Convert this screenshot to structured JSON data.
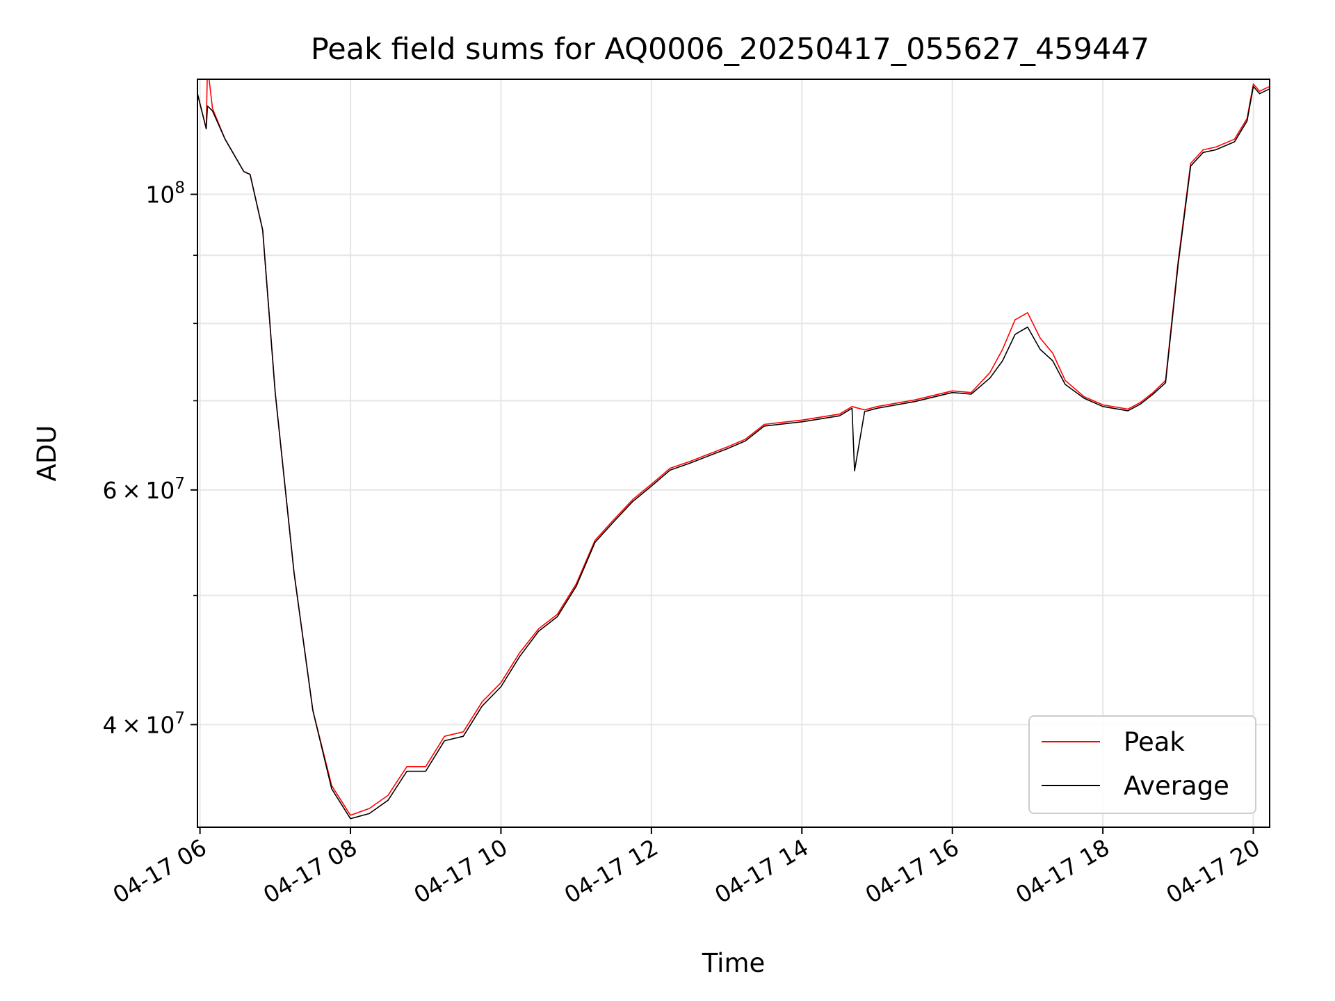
{
  "chart_data": {
    "type": "line",
    "title": "Peak field sums for AQ0006_20250417_055627_459447",
    "xlabel": "Time",
    "ylabel": "ADU",
    "y_scale": "log",
    "ylim": [
      33500000,
      122000000
    ],
    "xlim": [
      "04-17 05:58",
      "04-17 20:13"
    ],
    "grid": true,
    "legend_position": "lower-right",
    "x_ticks": [
      {
        "t": "04-17 06:00",
        "label": "04-17 06"
      },
      {
        "t": "04-17 08:00",
        "label": "04-17 08"
      },
      {
        "t": "04-17 10:00",
        "label": "04-17 10"
      },
      {
        "t": "04-17 12:00",
        "label": "04-17 12"
      },
      {
        "t": "04-17 14:00",
        "label": "04-17 14"
      },
      {
        "t": "04-17 16:00",
        "label": "04-17 16"
      },
      {
        "t": "04-17 18:00",
        "label": "04-17 18"
      },
      {
        "t": "04-17 20:00",
        "label": "04-17 20"
      }
    ],
    "y_ticks_major": [
      {
        "value": 40000000,
        "mantissa": "4",
        "base": "10",
        "exp": "7"
      },
      {
        "value": 60000000,
        "mantissa": "6",
        "base": "10",
        "exp": "7"
      },
      {
        "value": 100000000,
        "mantissa": "",
        "base": "10",
        "exp": "8"
      }
    ],
    "y_ticks_minor": [
      50000000,
      70000000,
      80000000,
      90000000
    ],
    "series": [
      {
        "name": "Peak",
        "color": "#ff0000",
        "x": [
          "04-17 05:58",
          "04-17 06:05",
          "04-17 06:06",
          "04-17 06:10",
          "04-17 06:20",
          "04-17 06:35",
          "04-17 06:40",
          "04-17 06:50",
          "04-17 07:00",
          "04-17 07:15",
          "04-17 07:30",
          "04-17 07:45",
          "04-17 08:00",
          "04-17 08:15",
          "04-17 08:30",
          "04-17 08:45",
          "04-17 09:00",
          "04-17 09:15",
          "04-17 09:30",
          "04-17 09:45",
          "04-17 10:00",
          "04-17 10:15",
          "04-17 10:30",
          "04-17 10:45",
          "04-17 11:00",
          "04-17 11:15",
          "04-17 11:30",
          "04-17 11:45",
          "04-17 12:00",
          "04-17 12:15",
          "04-17 12:30",
          "04-17 12:45",
          "04-17 13:00",
          "04-17 13:15",
          "04-17 13:30",
          "04-17 14:00",
          "04-17 14:30",
          "04-17 14:40",
          "04-17 14:50",
          "04-17 15:00",
          "04-17 15:30",
          "04-17 16:00",
          "04-17 16:15",
          "04-17 16:30",
          "04-17 16:40",
          "04-17 16:50",
          "04-17 17:00",
          "04-17 17:10",
          "04-17 17:20",
          "04-17 17:30",
          "04-17 17:45",
          "04-17 18:00",
          "04-17 18:20",
          "04-17 18:30",
          "04-17 18:40",
          "04-17 18:50",
          "04-17 19:00",
          "04-17 19:10",
          "04-17 19:20",
          "04-17 19:30",
          "04-17 19:45",
          "04-17 19:55",
          "04-17 20:00",
          "04-17 20:05",
          "04-17 20:13"
        ],
        "y": [
          119000000,
          112000000,
          125000000,
          116000000,
          110000000,
          104000000,
          103500000,
          94000000,
          71000000,
          52000000,
          41000000,
          36000000,
          34200000,
          34600000,
          35400000,
          37200000,
          37200000,
          39200000,
          39500000,
          41600000,
          43000000,
          45300000,
          47200000,
          48400000,
          51000000,
          55000000,
          57000000,
          59000000,
          60600000,
          62300000,
          63000000,
          63800000,
          64600000,
          65500000,
          67200000,
          67700000,
          68400000,
          69300000,
          68900000,
          69300000,
          70100000,
          71200000,
          71000000,
          73500000,
          76500000,
          80500000,
          81500000,
          78000000,
          76000000,
          72500000,
          70500000,
          69500000,
          69000000,
          69800000,
          71000000,
          72500000,
          89000000,
          105500000,
          108000000,
          108500000,
          110000000,
          114000000,
          121000000,
          119500000,
          120500000
        ]
      },
      {
        "name": "Average",
        "color": "#000000",
        "x": [
          "04-17 05:58",
          "04-17 06:05",
          "04-17 06:06",
          "04-17 06:10",
          "04-17 06:20",
          "04-17 06:35",
          "04-17 06:40",
          "04-17 06:50",
          "04-17 07:00",
          "04-17 07:15",
          "04-17 07:30",
          "04-17 07:45",
          "04-17 08:00",
          "04-17 08:15",
          "04-17 08:30",
          "04-17 08:45",
          "04-17 09:00",
          "04-17 09:15",
          "04-17 09:30",
          "04-17 09:45",
          "04-17 10:00",
          "04-17 10:15",
          "04-17 10:30",
          "04-17 10:45",
          "04-17 11:00",
          "04-17 11:15",
          "04-17 11:30",
          "04-17 11:45",
          "04-17 12:00",
          "04-17 12:15",
          "04-17 12:30",
          "04-17 12:45",
          "04-17 13:00",
          "04-17 13:15",
          "04-17 13:30",
          "04-17 14:00",
          "04-17 14:30",
          "04-17 14:40",
          "04-17 14:42",
          "04-17 14:50",
          "04-17 15:00",
          "04-17 15:30",
          "04-17 16:00",
          "04-17 16:15",
          "04-17 16:30",
          "04-17 16:40",
          "04-17 16:50",
          "04-17 17:00",
          "04-17 17:10",
          "04-17 17:20",
          "04-17 17:30",
          "04-17 17:45",
          "04-17 18:00",
          "04-17 18:20",
          "04-17 18:30",
          "04-17 18:40",
          "04-17 18:50",
          "04-17 19:00",
          "04-17 19:10",
          "04-17 19:20",
          "04-17 19:30",
          "04-17 19:45",
          "04-17 19:55",
          "04-17 20:00",
          "04-17 20:05",
          "04-17 20:13"
        ],
        "y": [
          119000000,
          112000000,
          116500000,
          115500000,
          110000000,
          104000000,
          103500000,
          94000000,
          71000000,
          52000000,
          41000000,
          35800000,
          34000000,
          34300000,
          35100000,
          36900000,
          36900000,
          38900000,
          39200000,
          41300000,
          42700000,
          45000000,
          47000000,
          48200000,
          50800000,
          54800000,
          56800000,
          58800000,
          60400000,
          62100000,
          62800000,
          63600000,
          64400000,
          65300000,
          67000000,
          67500000,
          68200000,
          69100000,
          62000000,
          68700000,
          69100000,
          69900000,
          71000000,
          70800000,
          72800000,
          75000000,
          78500000,
          79500000,
          76500000,
          75000000,
          72000000,
          70300000,
          69300000,
          68800000,
          69600000,
          70800000,
          72200000,
          88500000,
          105000000,
          107500000,
          108000000,
          109500000,
          113500000,
          120500000,
          119000000,
          120000000
        ]
      }
    ]
  }
}
